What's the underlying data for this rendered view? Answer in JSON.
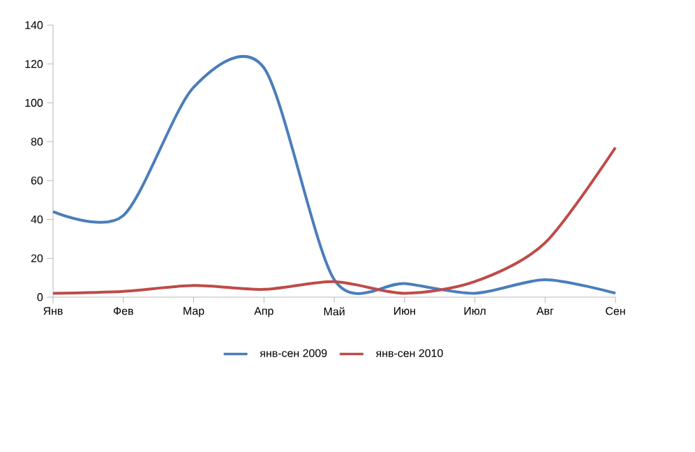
{
  "chart_data": {
    "type": "line",
    "categories": [
      "Янв",
      "Фев",
      "Мар",
      "Апр",
      "Май",
      "Июн",
      "Июл",
      "Авг",
      "Сен"
    ],
    "series": [
      {
        "name": "янв-сен 2009",
        "color": "#4a7ebb",
        "values": [
          44,
          42,
          108,
          118,
          9,
          7,
          2,
          9,
          2
        ]
      },
      {
        "name": "янв-сен 2010",
        "color": "#be4b48",
        "values": [
          2,
          3,
          6,
          4,
          8,
          2,
          8,
          28,
          77
        ]
      }
    ],
    "ylim": [
      0,
      140
    ],
    "yticks": [
      0,
      20,
      40,
      60,
      80,
      100,
      120,
      140
    ],
    "grid": false,
    "legend": "bottom"
  }
}
